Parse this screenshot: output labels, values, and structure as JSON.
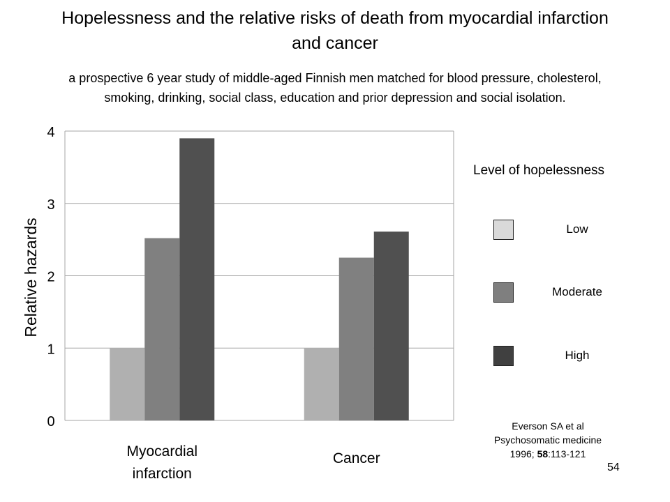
{
  "page": {
    "title_line1": "Hopelessness and the relative risks of death from myocardial infarction",
    "title_line2": "and  cancer",
    "subtitle_line1": "a prospective 6 year study of middle-aged Finnish men matched for blood pressure, cholesterol,",
    "subtitle_line2": "smoking, drinking, social class, education and prior depression and social isolation.",
    "citation_line1": "Everson SA et al",
    "citation_line2": "Psychosomatic medicine",
    "citation_line3_pre": "1996; ",
    "citation_line3_bold": "58",
    "citation_line3_post": ":113-121",
    "page_number": "54"
  },
  "legend": {
    "title": "Level of hopelessness",
    "items": [
      {
        "label": "Low",
        "color": "#d9d9d9"
      },
      {
        "label": "Moderate",
        "color": "#7f7f7f"
      },
      {
        "label": "High",
        "color": "#404040"
      }
    ]
  },
  "chart_data": {
    "type": "bar",
    "ylabel": "Relative hazards",
    "ylim": [
      0,
      4
    ],
    "yticks": [
      "0",
      "1",
      "2",
      "3",
      "4"
    ],
    "categories": [
      {
        "lines": [
          "Myocardial",
          "infarction"
        ]
      },
      {
        "lines": [
          "Cancer"
        ]
      }
    ],
    "series": [
      {
        "name": "Low",
        "color": "#b0b0b0",
        "values": [
          1.0,
          1.0
        ]
      },
      {
        "name": "Moderate",
        "color": "#808080",
        "values": [
          2.52,
          2.25
        ]
      },
      {
        "name": "High",
        "color": "#505050",
        "values": [
          3.9,
          2.61
        ]
      }
    ],
    "grid": true
  }
}
